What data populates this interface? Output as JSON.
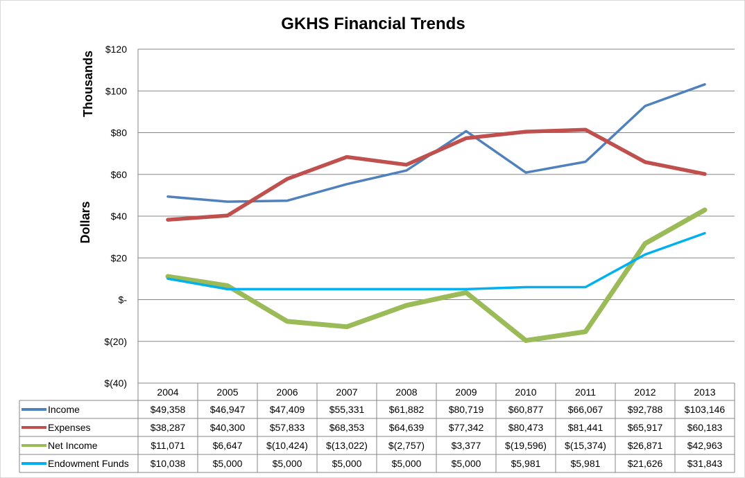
{
  "chart_data": {
    "type": "line",
    "title": "GKHS Financial Trends",
    "ylabel": "Dollars",
    "yunit_label": "Thousands",
    "ylim": [
      -40,
      120
    ],
    "yticks": [
      120,
      100,
      80,
      60,
      40,
      20,
      0,
      -20,
      -40
    ],
    "ytick_labels": [
      "$120",
      "$100",
      "$80",
      "$60",
      "$40",
      "$20",
      "$-",
      "$(20)",
      "$(40)"
    ],
    "grid": true,
    "legend": "data-table",
    "categories": [
      "2004",
      "2005",
      "2006",
      "2007",
      "2008",
      "2009",
      "2010",
      "2011",
      "2012",
      "2013"
    ],
    "series": [
      {
        "name": "Income",
        "color": "#4f81bd",
        "values": [
          49.358,
          46.947,
          47.409,
          55.331,
          61.882,
          80.719,
          60.877,
          66.067,
          92.788,
          103.146
        ],
        "labels": [
          "$49,358",
          "$46,947",
          "$47,409",
          "$55,331",
          "$61,882",
          "$80,719",
          "$60,877",
          "$66,067",
          "$92,788",
          "$103,146"
        ]
      },
      {
        "name": "Expenses",
        "color": "#c0504d",
        "values": [
          38.287,
          40.3,
          57.833,
          68.353,
          64.639,
          77.342,
          80.473,
          81.441,
          65.917,
          60.183
        ],
        "labels": [
          "$38,287",
          "$40,300",
          "$57,833",
          "$68,353",
          "$64,639",
          "$77,342",
          "$80,473",
          "$81,441",
          "$65,917",
          "$60,183"
        ]
      },
      {
        "name": "Net Income",
        "color": "#9bbb59",
        "values": [
          11.071,
          6.647,
          -10.424,
          -13.022,
          -2.757,
          3.377,
          -19.596,
          -15.374,
          26.871,
          42.963
        ],
        "labels": [
          "$11,071",
          "$6,647",
          "$(10,424)",
          "$(13,022)",
          "$(2,757)",
          "$3,377",
          "$(19,596)",
          "$(15,374)",
          "$26,871",
          "$42,963"
        ]
      },
      {
        "name": "Endowment Funds",
        "color": "#00b0f0",
        "values": [
          10.038,
          5.0,
          5.0,
          5.0,
          5.0,
          5.0,
          5.981,
          5.981,
          21.626,
          31.843
        ],
        "labels": [
          "$10,038",
          "$5,000",
          "$5,000",
          "$5,000",
          "$5,000",
          "$5,000",
          "$5,981",
          "$5,981",
          "$21,626",
          "$31,843"
        ]
      }
    ]
  }
}
